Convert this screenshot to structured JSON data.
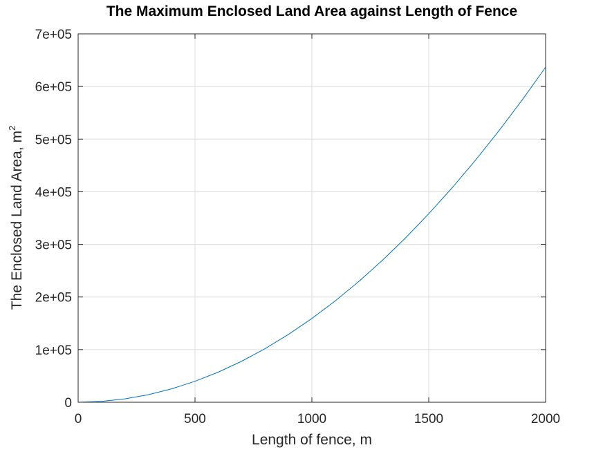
{
  "chart_data": {
    "type": "line",
    "title": "The Maximum Enclosed Land Area against Length of Fence",
    "xlabel": "Length of fence, m",
    "ylabel": "The Enclosed Land Area, m",
    "ylabel_superscript": "2",
    "xlim": [
      0,
      2000
    ],
    "ylim": [
      0,
      700000
    ],
    "xticks": [
      0,
      500,
      1000,
      1500,
      2000
    ],
    "xtick_labels": [
      "0",
      "500",
      "1000",
      "1500",
      "2000"
    ],
    "yticks": [
      0,
      100000,
      200000,
      300000,
      400000,
      500000,
      600000,
      700000
    ],
    "ytick_labels": [
      "0",
      "1e+05",
      "2e+05",
      "3e+05",
      "4e+05",
      "5e+05",
      "6e+05",
      "7e+05"
    ],
    "grid": true,
    "series": [
      {
        "color": "#0072bd",
        "x": [
          0,
          100,
          200,
          300,
          400,
          500,
          600,
          700,
          800,
          900,
          1000,
          1100,
          1200,
          1300,
          1400,
          1500,
          1600,
          1700,
          1800,
          1900,
          2000
        ],
        "y": [
          0,
          1592,
          6366,
          14324,
          25465,
          39789,
          57296,
          77986,
          101859,
          128916,
          159155,
          192577,
          229183,
          268972,
          311944,
          358099,
          407437,
          459958,
          515662,
          574550,
          636620
        ]
      }
    ]
  }
}
